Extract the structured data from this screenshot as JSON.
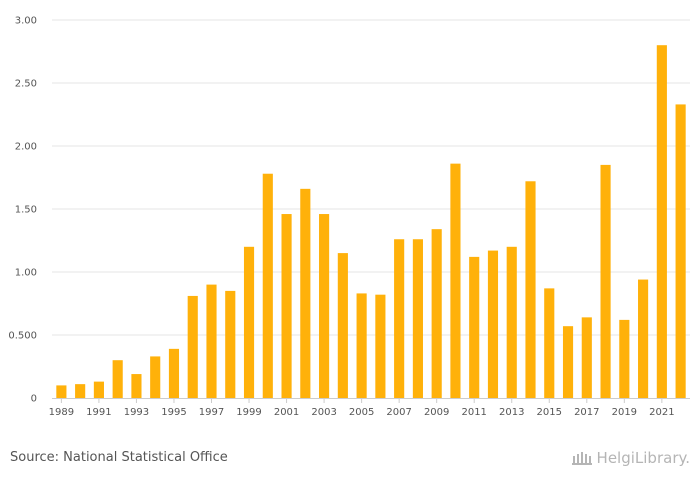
{
  "chart_data": {
    "type": "bar",
    "categories": [
      "1989",
      "1990",
      "1991",
      "1992",
      "1993",
      "1994",
      "1995",
      "1996",
      "1997",
      "1998",
      "1999",
      "2000",
      "2001",
      "2002",
      "2003",
      "2004",
      "2005",
      "2006",
      "2007",
      "2008",
      "2009",
      "2010",
      "2011",
      "2012",
      "2013",
      "2014",
      "2015",
      "2016",
      "2017",
      "2018",
      "2019",
      "2020",
      "2021",
      "2022"
    ],
    "values": [
      0.1,
      0.11,
      0.13,
      0.3,
      0.19,
      0.33,
      0.39,
      0.81,
      0.9,
      0.85,
      1.2,
      1.78,
      1.46,
      1.66,
      1.46,
      1.15,
      0.83,
      0.82,
      1.26,
      1.26,
      1.34,
      1.86,
      1.12,
      1.17,
      1.2,
      1.72,
      0.87,
      0.57,
      0.64,
      1.85,
      0.62,
      0.94,
      2.8,
      2.33
    ],
    "x_tick_labels": [
      "1989",
      "1991",
      "1993",
      "1995",
      "1997",
      "1999",
      "2001",
      "2003",
      "2005",
      "2007",
      "2009",
      "2011",
      "2013",
      "2015",
      "2017",
      "2019",
      "2021"
    ],
    "y_ticks": [
      0,
      0.5,
      1.0,
      1.5,
      2.0,
      2.5,
      3.0
    ],
    "y_tick_labels": [
      "0",
      "0.500",
      "1.00",
      "1.50",
      "2.00",
      "2.50",
      "3.00"
    ],
    "ylim": [
      0,
      3.0
    ],
    "grid": true,
    "bar_color": "#ffb10a",
    "title": "",
    "xlabel": "",
    "ylabel": ""
  },
  "footer": {
    "source": "Source: National Statistical Office",
    "logo_text": "HelgiLibrary."
  }
}
